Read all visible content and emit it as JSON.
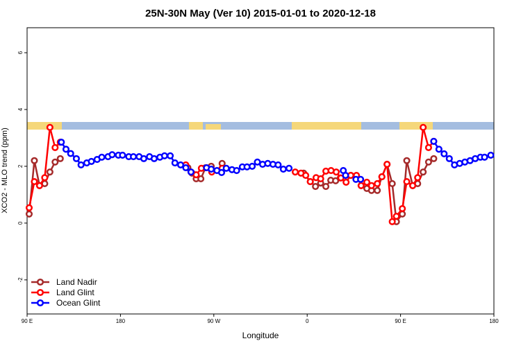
{
  "chart_data": {
    "type": "line",
    "title": "25N-30N May (Ver 10)   2015-01-01 to 2020-12-18",
    "x_label": "Longitude",
    "y_label": "XCO2 - MLO trend (ppm)",
    "xlim": [
      90,
      540
    ],
    "xticks": [
      {
        "value": 90,
        "label": "90 E"
      },
      {
        "value": 180,
        "label": "180"
      },
      {
        "value": 270,
        "label": "90 W"
      },
      {
        "value": 360,
        "label": "0"
      },
      {
        "value": 450,
        "label": "90 E"
      },
      {
        "value": 540,
        "label": "180"
      }
    ],
    "ylim": [
      -3.2,
      6.88
    ],
    "yticks": [
      -2,
      0,
      2,
      4,
      6
    ],
    "legend": "bottom-left",
    "series": [
      {
        "name": "Land Nadir",
        "color": "#a52a2a",
        "x": [
          92,
          97,
          102,
          107,
          112,
          117,
          122,
          null,
          245,
          249,
          253,
          257.5,
          262,
          267.5,
          null,
          278,
          null,
          356.6,
          363,
          368,
          373,
          378,
          382.7,
          387.4,
          392,
          null,
          402,
          null,
          412,
          417.5,
          422,
          427.6,
          432,
          437,
          442,
          446,
          451.7,
          456,
          461.7,
          466.5,
          471.8,
          477,
          482
        ],
        "values": [
          0.32,
          2.2,
          1.32,
          1.39,
          1.8,
          2.15,
          2.27,
          null,
          1.95,
          1.76,
          1.56,
          1.56,
          1.95,
          2.0,
          null,
          2.1,
          null,
          1.76,
          1.46,
          1.29,
          1.41,
          1.29,
          1.51,
          1.49,
          1.59,
          null,
          1.68,
          null,
          1.32,
          1.22,
          1.15,
          1.15,
          1.63,
          2.07,
          1.39,
          0.05,
          0.32,
          2.2,
          1.32,
          1.39,
          1.8,
          2.15,
          2.27
        ]
      },
      {
        "name": "Land Glint",
        "color": "#ff0000",
        "x": [
          92,
          97,
          102,
          107,
          112,
          117,
          122,
          null,
          243,
          248,
          253,
          258,
          263,
          268,
          null,
          278,
          null,
          348.5,
          354,
          358.6,
          363,
          368.6,
          373,
          378,
          383,
          388,
          392.5,
          397.5,
          402,
          407.5,
          412,
          417.5,
          422,
          427.6,
          432,
          437,
          442,
          446,
          451.7,
          456,
          461.7,
          466.5,
          471.8,
          477,
          482
        ],
        "values": [
          0.54,
          1.46,
          1.32,
          1.6,
          3.37,
          2.66,
          2.85,
          null,
          2.05,
          1.8,
          1.7,
          1.93,
          1.95,
          1.8,
          null,
          1.93,
          null,
          1.8,
          1.76,
          1.68,
          1.46,
          1.6,
          1.56,
          1.83,
          1.85,
          1.8,
          1.59,
          1.44,
          1.68,
          1.68,
          1.32,
          1.44,
          1.32,
          1.39,
          1.63,
          2.07,
          0.05,
          0.24,
          0.51,
          1.46,
          1.32,
          1.6,
          3.37,
          2.66,
          2.88
        ]
      },
      {
        "name": "Ocean Glint",
        "color": "#0000ff",
        "x": [
          123,
          127.5,
          132,
          137.5,
          142,
          147.5,
          152,
          157.5,
          162,
          168,
          172,
          178,
          182,
          188,
          192.5,
          198,
          202.5,
          208,
          212.5,
          218,
          222.5,
          228,
          232.5,
          238,
          243,
          248,
          null,
          263,
          267.5,
          273,
          277.5,
          282,
          287.5,
          292,
          297.5,
          302,
          307,
          312,
          317,
          322,
          327,
          332,
          337,
          342.5,
          null,
          394.8,
          397,
          null,
          407,
          411.5,
          null,
          482,
          487,
          492,
          497,
          502,
          507,
          512,
          517,
          522,
          527,
          531,
          537
        ],
        "values": [
          2.85,
          2.6,
          2.45,
          2.27,
          2.05,
          2.12,
          2.17,
          2.24,
          2.32,
          2.34,
          2.41,
          2.39,
          2.39,
          2.34,
          2.34,
          2.34,
          2.27,
          2.34,
          2.27,
          2.32,
          2.37,
          2.37,
          2.12,
          2.05,
          1.95,
          1.8,
          null,
          1.95,
          1.9,
          1.85,
          1.78,
          1.93,
          1.88,
          1.85,
          1.98,
          1.98,
          2.0,
          2.15,
          2.07,
          2.1,
          2.07,
          2.05,
          1.9,
          1.93,
          null,
          1.85,
          1.68,
          null,
          1.54,
          1.54,
          null,
          2.88,
          2.6,
          2.44,
          2.27,
          2.05,
          2.1,
          2.15,
          2.2,
          2.27,
          2.32,
          2.32,
          2.39
        ]
      }
    ]
  }
}
